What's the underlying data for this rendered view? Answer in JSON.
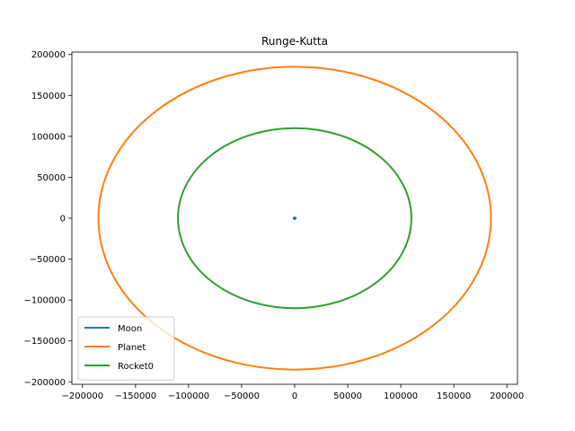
{
  "chart_data": {
    "type": "line",
    "title": "Runge-Kutta",
    "xlabel": "",
    "ylabel": "",
    "xlim": [
      -210000,
      210000
    ],
    "ylim": [
      -203000,
      203000
    ],
    "x_ticks": [
      {
        "value": -200000,
        "label": "−200000"
      },
      {
        "value": -150000,
        "label": "−150000"
      },
      {
        "value": -100000,
        "label": "−100000"
      },
      {
        "value": -50000,
        "label": "−50000"
      },
      {
        "value": 0,
        "label": "0"
      },
      {
        "value": 50000,
        "label": "50000"
      },
      {
        "value": 100000,
        "label": "100000"
      },
      {
        "value": 150000,
        "label": "150000"
      },
      {
        "value": 200000,
        "label": "200000"
      }
    ],
    "y_ticks": [
      {
        "value": 200000,
        "label": "200000"
      },
      {
        "value": 150000,
        "label": "150000"
      },
      {
        "value": 100000,
        "label": "100000"
      },
      {
        "value": 50000,
        "label": "50000"
      },
      {
        "value": 0,
        "label": "0"
      },
      {
        "value": -50000,
        "label": "−50000"
      },
      {
        "value": -100000,
        "label": "−100000"
      },
      {
        "value": -150000,
        "label": "−150000"
      },
      {
        "value": -200000,
        "label": "−200000"
      }
    ],
    "grid": false,
    "legend_position": "lower-left",
    "series": [
      {
        "name": "Moon",
        "color": "#1f77b4",
        "shape": "circle",
        "cx": 0,
        "cy": 0,
        "rx": 1000,
        "ry": 1000
      },
      {
        "name": "Planet",
        "color": "#ff7f0e",
        "shape": "circle",
        "cx": 0,
        "cy": 0,
        "rx": 185000,
        "ry": 185000
      },
      {
        "name": "Rocket0",
        "color": "#2ca02c",
        "shape": "circle",
        "cx": 0,
        "cy": 0,
        "rx": 110000,
        "ry": 110000
      }
    ]
  }
}
